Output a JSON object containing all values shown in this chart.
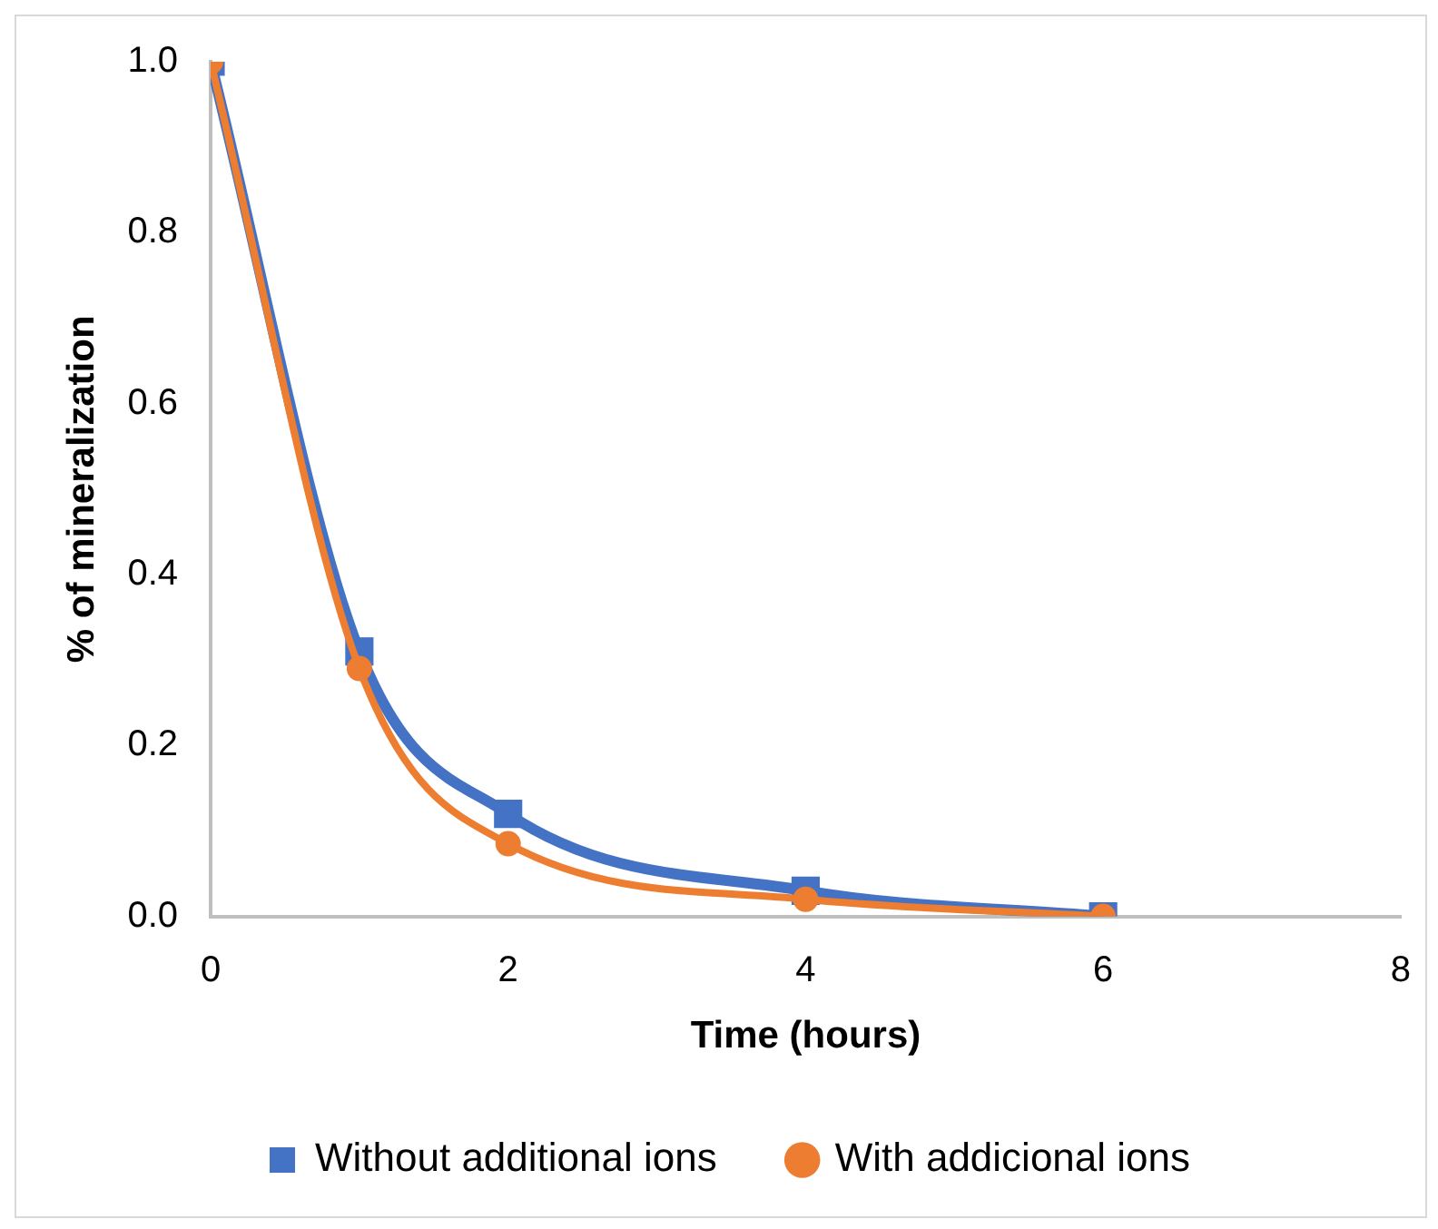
{
  "chart_data": {
    "type": "line",
    "xlabel": "Time (hours)",
    "ylabel": "% of mineralization",
    "x": [
      0,
      1,
      2,
      4,
      6
    ],
    "series": [
      {
        "name": "Without additional ions",
        "color": "#4472c4",
        "marker": "square",
        "values": [
          1.0,
          0.31,
          0.12,
          0.03,
          0.0
        ]
      },
      {
        "name": "With addicional ions",
        "color": "#ed7d31",
        "marker": "circle",
        "values": [
          1.0,
          0.29,
          0.085,
          0.02,
          0.0
        ]
      }
    ],
    "xlim": [
      0,
      8
    ],
    "xticks": [
      0,
      2,
      4,
      6,
      8
    ],
    "ylim": [
      0,
      1
    ],
    "yticks": [
      "0.0",
      0.2,
      0.4,
      0.6,
      0.8,
      "1.0"
    ],
    "grid": false,
    "legend": "bottom",
    "line_style": "solid"
  }
}
